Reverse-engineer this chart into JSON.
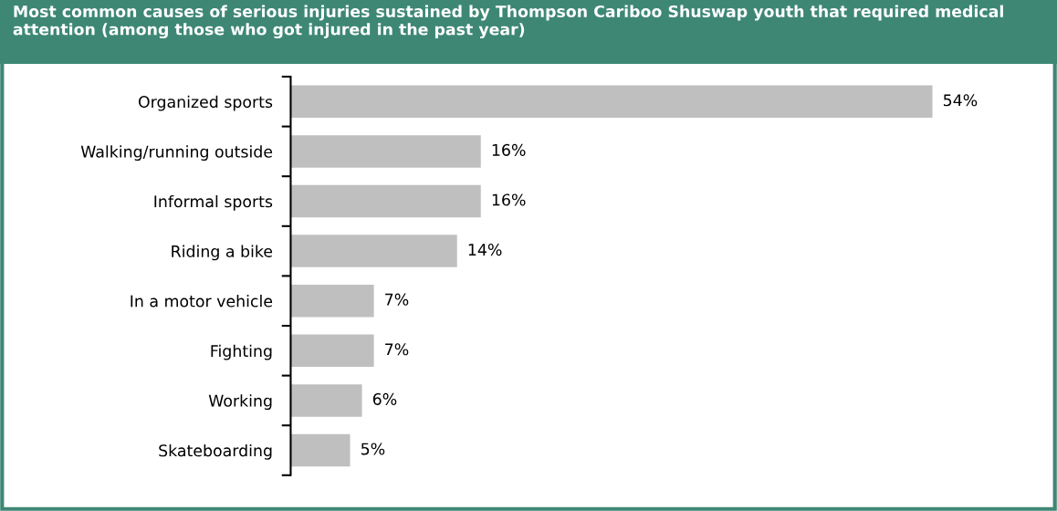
{
  "chart_data": {
    "type": "bar",
    "orientation": "horizontal",
    "title": "Most common causes of serious injuries sustained by Thompson Cariboo Shuswap youth that required medical attention (among those who got injured in the past year)",
    "categories": [
      "Organized sports",
      "Walking/running outside",
      "Informal sports",
      "Riding a bike",
      "In a motor vehicle",
      "Fighting",
      "Working",
      "Skateboarding"
    ],
    "values": [
      54,
      16,
      16,
      14,
      7,
      7,
      6,
      5
    ],
    "value_labels": [
      "54%",
      "16%",
      "16%",
      "14%",
      "7%",
      "7%",
      "6%",
      "5%"
    ],
    "color": "#bfbfbf",
    "grid": false,
    "legend": false
  }
}
